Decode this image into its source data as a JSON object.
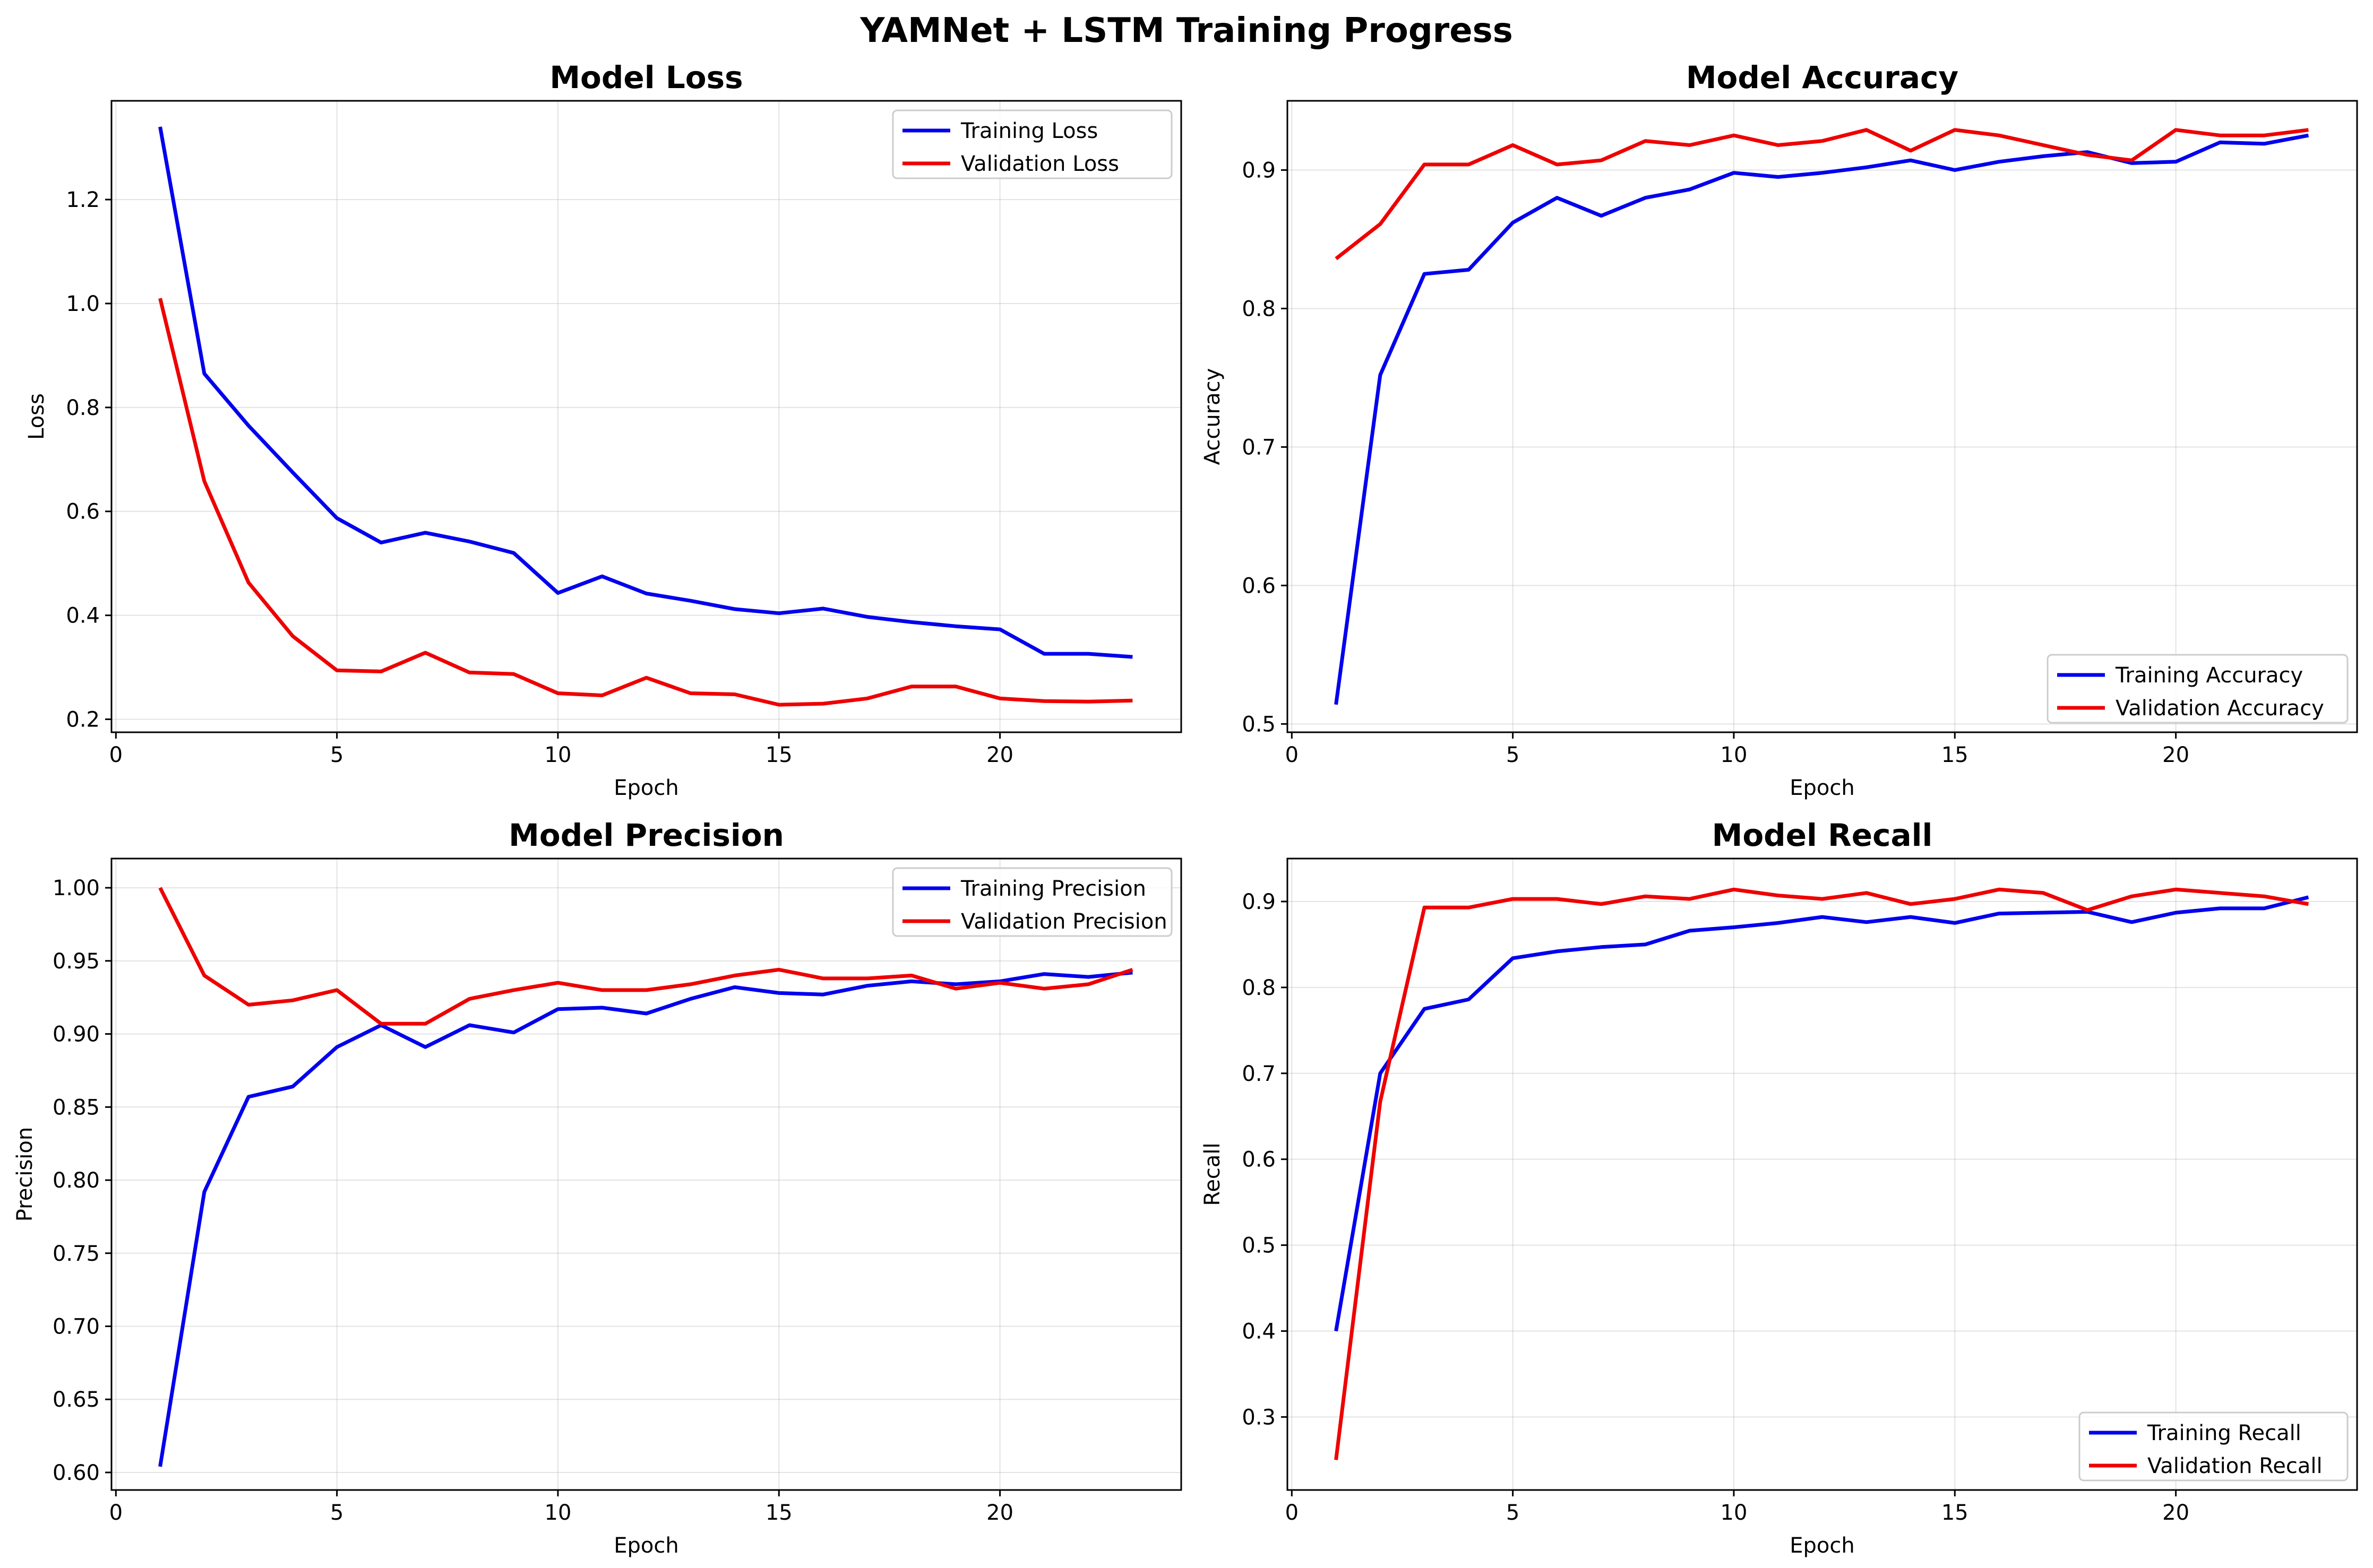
{
  "figure": {
    "title": "YAMNet + LSTM Training Progress"
  },
  "colors": {
    "training": "#0000ee",
    "validation": "#ee0000"
  },
  "chart_data": [
    {
      "type": "line",
      "title": "Model Loss",
      "xlabel": "Epoch",
      "ylabel": "Loss",
      "xlim": [
        -0.1,
        24.1
      ],
      "ylim": [
        0.175,
        1.39
      ],
      "xticks": [
        0,
        5,
        10,
        15,
        20
      ],
      "yticks": [
        0.2,
        0.4,
        0.6,
        0.8,
        1.0,
        1.2
      ],
      "ytick_labels": [
        "0.2",
        "0.4",
        "0.6",
        "0.8",
        "1.0",
        "1.2"
      ],
      "grid": true,
      "legend": "upper right",
      "x": [
        1,
        2,
        3,
        4,
        5,
        6,
        7,
        8,
        9,
        10,
        11,
        12,
        13,
        14,
        15,
        16,
        17,
        18,
        19,
        20,
        21,
        22,
        23
      ],
      "series": [
        {
          "name": "Training Loss",
          "color": "#0000ee",
          "values": [
            1.34,
            0.865,
            0.765,
            0.675,
            0.587,
            0.54,
            0.559,
            0.542,
            0.52,
            0.443,
            0.475,
            0.442,
            0.428,
            0.412,
            0.404,
            0.413,
            0.397,
            0.387,
            0.379,
            0.373,
            0.326,
            0.326,
            0.32
          ]
        },
        {
          "name": "Validation Loss",
          "color": "#ee0000",
          "values": [
            1.01,
            0.658,
            0.463,
            0.36,
            0.294,
            0.292,
            0.328,
            0.29,
            0.287,
            0.25,
            0.246,
            0.28,
            0.25,
            0.248,
            0.228,
            0.23,
            0.24,
            0.263,
            0.263,
            0.24,
            0.235,
            0.234,
            0.236
          ]
        }
      ]
    },
    {
      "type": "line",
      "title": "Model Accuracy",
      "xlabel": "Epoch",
      "ylabel": "Accuracy",
      "xlim": [
        -0.1,
        24.1
      ],
      "ylim": [
        0.494,
        0.95
      ],
      "xticks": [
        0,
        5,
        10,
        15,
        20
      ],
      "yticks": [
        0.5,
        0.6,
        0.7,
        0.8,
        0.9
      ],
      "ytick_labels": [
        "0.5",
        "0.6",
        "0.7",
        "0.8",
        "0.9"
      ],
      "grid": true,
      "legend": "lower right",
      "x": [
        1,
        2,
        3,
        4,
        5,
        6,
        7,
        8,
        9,
        10,
        11,
        12,
        13,
        14,
        15,
        16,
        17,
        18,
        19,
        20,
        21,
        22,
        23
      ],
      "series": [
        {
          "name": "Training Accuracy",
          "color": "#0000ee",
          "values": [
            0.514,
            0.752,
            0.825,
            0.828,
            0.862,
            0.88,
            0.867,
            0.88,
            0.886,
            0.898,
            0.895,
            0.898,
            0.902,
            0.907,
            0.9,
            0.906,
            0.91,
            0.913,
            0.905,
            0.906,
            0.92,
            0.919,
            0.925
          ]
        },
        {
          "name": "Validation Accuracy",
          "color": "#ee0000",
          "values": [
            0.836,
            0.861,
            0.904,
            0.904,
            0.918,
            0.904,
            0.907,
            0.921,
            0.918,
            0.925,
            0.918,
            0.921,
            0.929,
            0.914,
            0.929,
            0.925,
            0.918,
            0.911,
            0.907,
            0.929,
            0.925,
            0.925,
            0.929
          ]
        }
      ]
    },
    {
      "type": "line",
      "title": "Model Precision",
      "xlabel": "Epoch",
      "ylabel": "Precision",
      "xlim": [
        -0.1,
        24.1
      ],
      "ylim": [
        0.588,
        1.02
      ],
      "xticks": [
        0,
        5,
        10,
        15,
        20
      ],
      "yticks": [
        0.6,
        0.65,
        0.7,
        0.75,
        0.8,
        0.85,
        0.9,
        0.95,
        1.0
      ],
      "ytick_labels": [
        "0.60",
        "0.65",
        "0.70",
        "0.75",
        "0.80",
        "0.85",
        "0.90",
        "0.95",
        "1.00"
      ],
      "grid": true,
      "legend": "upper right",
      "x": [
        1,
        2,
        3,
        4,
        5,
        6,
        7,
        8,
        9,
        10,
        11,
        12,
        13,
        14,
        15,
        16,
        17,
        18,
        19,
        20,
        21,
        22,
        23
      ],
      "series": [
        {
          "name": "Training Precision",
          "color": "#0000ee",
          "values": [
            0.604,
            0.792,
            0.857,
            0.864,
            0.891,
            0.906,
            0.891,
            0.906,
            0.901,
            0.917,
            0.918,
            0.914,
            0.924,
            0.932,
            0.928,
            0.927,
            0.933,
            0.936,
            0.934,
            0.936,
            0.941,
            0.939,
            0.942
          ]
        },
        {
          "name": "Validation Precision",
          "color": "#ee0000",
          "values": [
            1.0,
            0.94,
            0.92,
            0.923,
            0.93,
            0.907,
            0.907,
            0.924,
            0.93,
            0.935,
            0.93,
            0.93,
            0.934,
            0.94,
            0.944,
            0.938,
            0.938,
            0.94,
            0.931,
            0.935,
            0.931,
            0.934,
            0.944
          ]
        }
      ]
    },
    {
      "type": "line",
      "title": "Model Recall",
      "xlabel": "Epoch",
      "ylabel": "Recall",
      "xlim": [
        -0.1,
        24.1
      ],
      "ylim": [
        0.215,
        0.95
      ],
      "xticks": [
        0,
        5,
        10,
        15,
        20
      ],
      "yticks": [
        0.3,
        0.4,
        0.5,
        0.6,
        0.7,
        0.8,
        0.9
      ],
      "ytick_labels": [
        "0.3",
        "0.4",
        "0.5",
        "0.6",
        "0.7",
        "0.8",
        "0.9"
      ],
      "grid": true,
      "legend": "lower right",
      "x": [
        1,
        2,
        3,
        4,
        5,
        6,
        7,
        8,
        9,
        10,
        11,
        12,
        13,
        14,
        15,
        16,
        17,
        18,
        19,
        20,
        21,
        22,
        23
      ],
      "series": [
        {
          "name": "Training Recall",
          "color": "#0000ee",
          "values": [
            0.4,
            0.7,
            0.775,
            0.786,
            0.834,
            0.842,
            0.847,
            0.85,
            0.866,
            0.87,
            0.875,
            0.882,
            0.876,
            0.882,
            0.875,
            0.886,
            0.887,
            0.888,
            0.876,
            0.887,
            0.892,
            0.892,
            0.905
          ]
        },
        {
          "name": "Validation Recall",
          "color": "#ee0000",
          "values": [
            0.25,
            0.667,
            0.893,
            0.893,
            0.903,
            0.903,
            0.897,
            0.906,
            0.903,
            0.914,
            0.907,
            0.903,
            0.91,
            0.897,
            0.903,
            0.914,
            0.91,
            0.89,
            0.906,
            0.914,
            0.91,
            0.906,
            0.897
          ]
        }
      ]
    }
  ]
}
